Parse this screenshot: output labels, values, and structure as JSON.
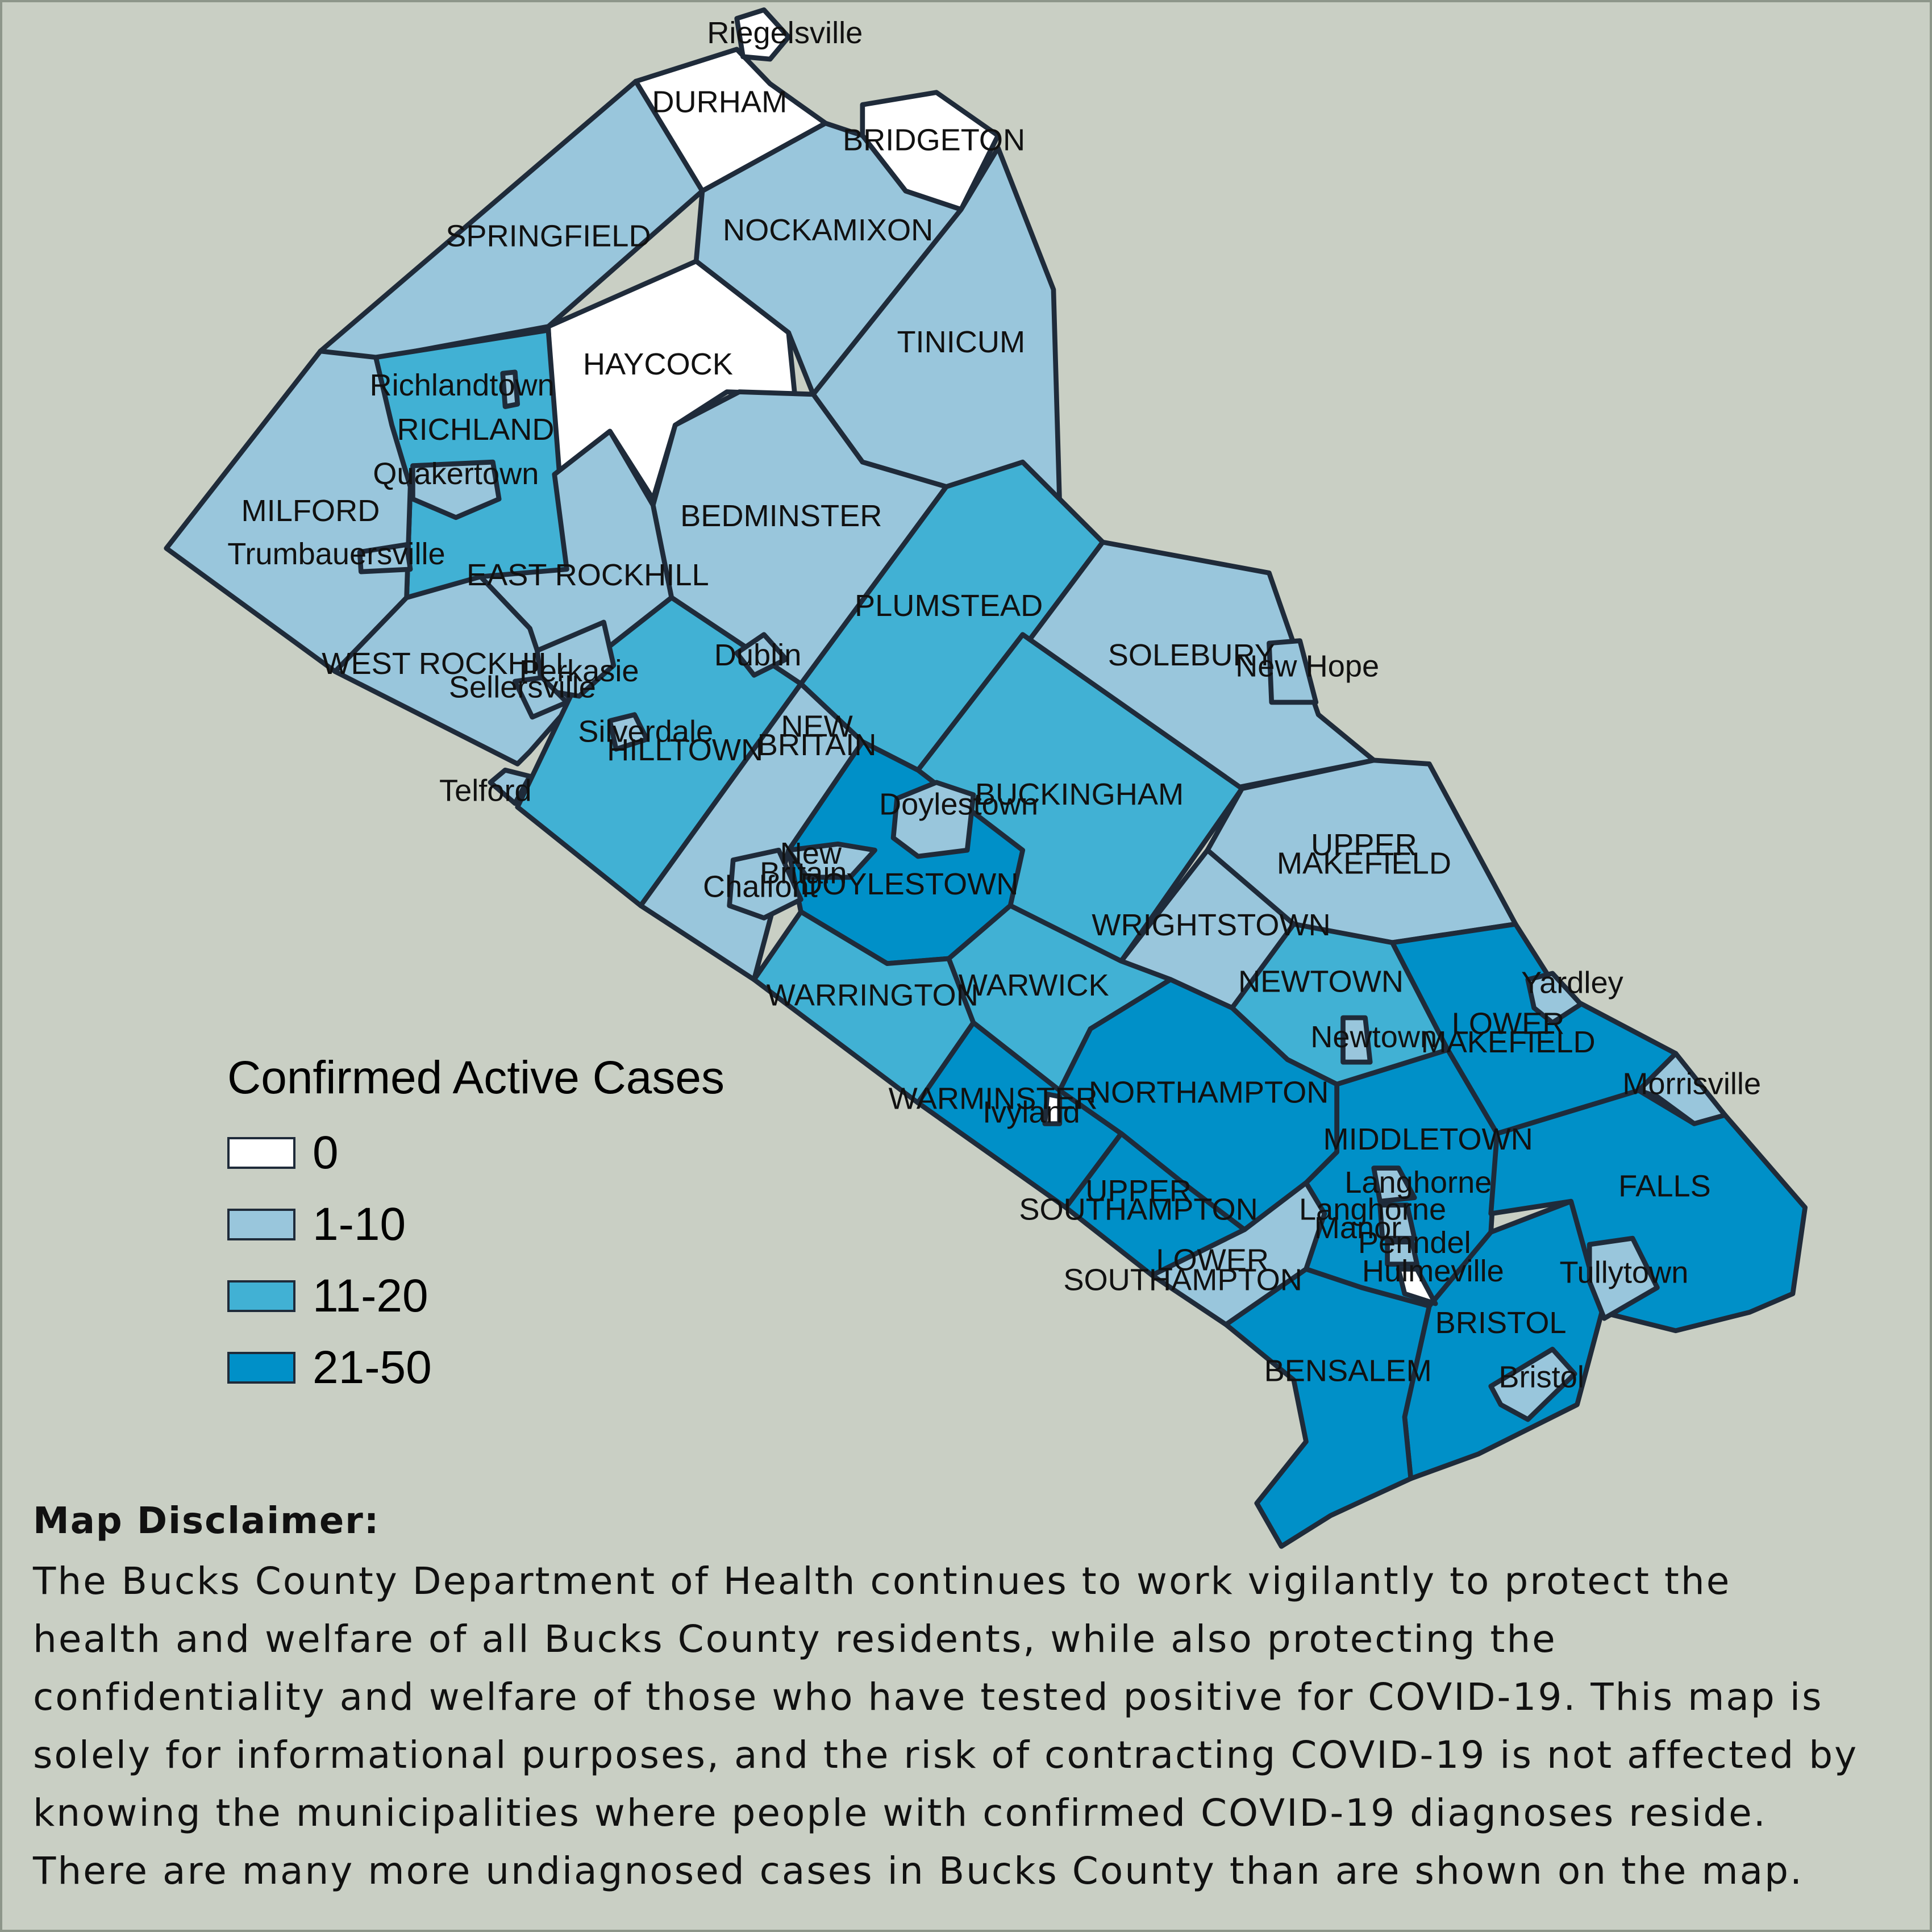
{
  "legend": {
    "title": "Confirmed Active Cases",
    "items": [
      {
        "label": "0",
        "color": "#ffffff"
      },
      {
        "label": "1-10",
        "color": "#99c6dc"
      },
      {
        "label": "11-20",
        "color": "#41b1d4"
      },
      {
        "label": "21-50",
        "color": "#0090c8"
      }
    ]
  },
  "municipalities": {
    "riegelsville": {
      "name": "Riegelsville",
      "category": "0"
    },
    "durham": {
      "name": "DURHAM",
      "category": "0"
    },
    "bridgeton": {
      "name": "BRIDGETON",
      "category": "0"
    },
    "springfield": {
      "name": "SPRINGFIELD",
      "category": "1-10"
    },
    "nockamixon": {
      "name": "NOCKAMIXON",
      "category": "1-10"
    },
    "haycock": {
      "name": "HAYCOCK",
      "category": "0"
    },
    "tinicum": {
      "name": "TINICUM",
      "category": "1-10"
    },
    "richlandtown": {
      "name": "Richlandtown",
      "category": "1-10"
    },
    "richland": {
      "name": "RICHLAND",
      "category": "11-20"
    },
    "quakertown": {
      "name": "Quakertown",
      "category": "1-10"
    },
    "milford": {
      "name": "MILFORD",
      "category": "1-10"
    },
    "trumbauersville": {
      "name": "Trumbauersville",
      "category": "1-10"
    },
    "bedminster": {
      "name": "BEDMINSTER",
      "category": "1-10"
    },
    "east_rockhill": {
      "name": "EAST ROCKHILL",
      "category": "1-10"
    },
    "plumstead": {
      "name": "PLUMSTEAD",
      "category": "11-20"
    },
    "west_rockhill": {
      "name": "WEST ROCKHILL",
      "category": "1-10"
    },
    "perkasie": {
      "name": "Perkasie",
      "category": "1-10"
    },
    "sellersville": {
      "name": "Sellersville",
      "category": "1-10"
    },
    "dublin": {
      "name": "Dublin",
      "category": "1-10"
    },
    "solebury": {
      "name": "SOLEBURY",
      "category": "1-10"
    },
    "new_hope": {
      "name": "New Hope",
      "category": "1-10"
    },
    "silverdale": {
      "name": "Silverdale",
      "category": "1-10"
    },
    "hilltown": {
      "name": "HILLTOWN",
      "category": "11-20"
    },
    "new_britain_twp_line1": "NEW",
    "new_britain_twp_line2": "BRITAIN",
    "new_britain_twp": {
      "category": "1-10"
    },
    "telford": {
      "name": "Telford",
      "category": "1-10"
    },
    "buckingham": {
      "name": "BUCKINGHAM",
      "category": "11-20"
    },
    "doylestown_boro": {
      "name": "Doylestown",
      "category": "1-10"
    },
    "new_britain_boro_line1": "New",
    "new_britain_boro_line2": "Britain",
    "chalfont": {
      "name": "Chalfont",
      "category": "1-10"
    },
    "doylestown": {
      "name": "DOYLESTOWN",
      "category": "21-50"
    },
    "upper_makefield_line1": "UPPER",
    "upper_makefield_line2": "MAKEFIELD",
    "upper_makefield": {
      "category": "1-10"
    },
    "wrightstown": {
      "name": "WRIGHTSTOWN",
      "category": "1-10"
    },
    "warrington": {
      "name": "WARRINGTON",
      "category": "11-20"
    },
    "warwick": {
      "name": "WARWICK",
      "category": "11-20"
    },
    "newtown_twp": {
      "name": "NEWTOWN",
      "category": "11-20"
    },
    "yardley": {
      "name": "Yardley",
      "category": "1-10"
    },
    "lower_makefield_line1": "LOWER",
    "lower_makefield_line2": "MAKEFIELD",
    "lower_makefield": {
      "category": "21-50"
    },
    "newtown_boro": {
      "name": "Newtown",
      "category": "1-10"
    },
    "morrisville": {
      "name": "Morrisville",
      "category": "1-10"
    },
    "warminster": {
      "name": "WARMINSTER",
      "category": "21-50"
    },
    "ivyland": {
      "name": "Ivyland",
      "category": "0"
    },
    "northampton": {
      "name": "NORTHAMPTON",
      "category": "21-50"
    },
    "middletown": {
      "name": "MIDDLETOWN",
      "category": "21-50"
    },
    "langhorne": {
      "name": "Langhorne",
      "category": "1-10"
    },
    "falls": {
      "name": "FALLS",
      "category": "21-50"
    },
    "upper_southampton_line1": "UPPER",
    "upper_southampton_line2": "SOUTHAMPTON",
    "upper_southampton": {
      "category": "21-50"
    },
    "langhorne_manor_line1": "Langhorne",
    "langhorne_manor_line2": "Manor",
    "langhorne_manor": {
      "category": "1-10"
    },
    "penndel": {
      "name": "Penndel",
      "category": "1-10"
    },
    "lower_southampton_line1": "LOWER",
    "lower_southampton_line2": "SOUTHAMPTON",
    "lower_southampton": {
      "category": "1-10"
    },
    "hulmeville": {
      "name": "Hulmeville",
      "category": "0"
    },
    "tullytown": {
      "name": "Tullytown",
      "category": "1-10"
    },
    "bristol_twp": {
      "name": "BRISTOL",
      "category": "21-50"
    },
    "bensalem": {
      "name": "BENSALEM",
      "category": "21-50"
    },
    "bristol_boro": {
      "name": "Bristol",
      "category": "1-10"
    }
  },
  "disclaimer": {
    "title": "Map Disclaimer:",
    "body": "The Bucks County Department of Health continues to work vigilantly to protect the\nhealth and welfare of all Bucks County residents, while also protecting the\nconfidentiality and welfare of those who have tested positive for COVID-19. This map is\nsolely for informational purposes, and the risk of contracting COVID-19 is not affected by\nknowing the municipalities where people with confirmed COVID-19 diagnoses reside.\nThere are many more undiagnosed cases in Bucks County than are shown on the map."
  }
}
